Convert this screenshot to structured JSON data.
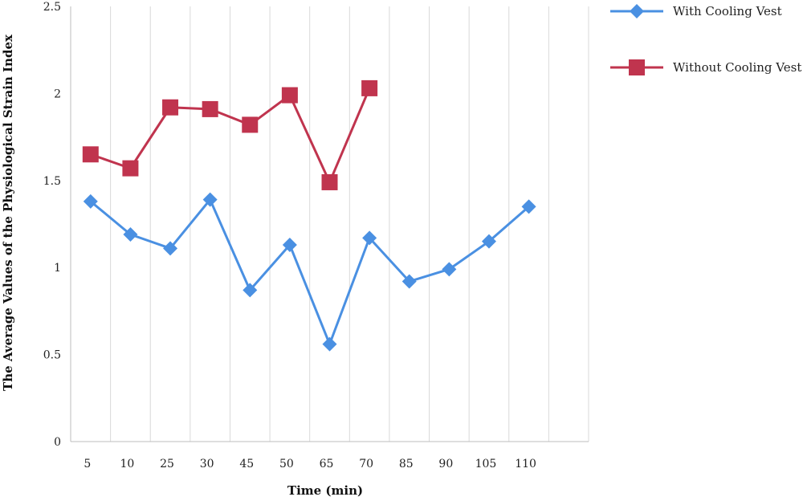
{
  "chart_data": {
    "type": "line",
    "title": "",
    "xlabel": "Time (min)",
    "ylabel": "The Average Values of the Physiological Strain Index",
    "categories": [
      "5",
      "10",
      "25",
      "30",
      "45",
      "50",
      "65",
      "70",
      "85",
      "90",
      "105",
      "110"
    ],
    "ylim": [
      0,
      2.5
    ],
    "yticks": [
      "0",
      "0.5",
      "1",
      "1.5",
      "2",
      "2.5"
    ],
    "grid": "vertical",
    "legend_position": "top-right",
    "series": [
      {
        "name": "With Cooling Vest",
        "color": "#4a90e2",
        "marker": "diamond",
        "values": [
          1.38,
          1.19,
          1.11,
          1.39,
          0.87,
          1.13,
          0.56,
          1.17,
          0.92,
          0.99,
          1.15,
          1.35
        ]
      },
      {
        "name": "Without Cooling Vest",
        "color": "#c0344e",
        "marker": "square",
        "values": [
          1.65,
          1.57,
          1.92,
          1.91,
          1.82,
          1.99,
          1.49,
          2.03,
          null,
          null,
          null,
          null
        ]
      }
    ]
  }
}
